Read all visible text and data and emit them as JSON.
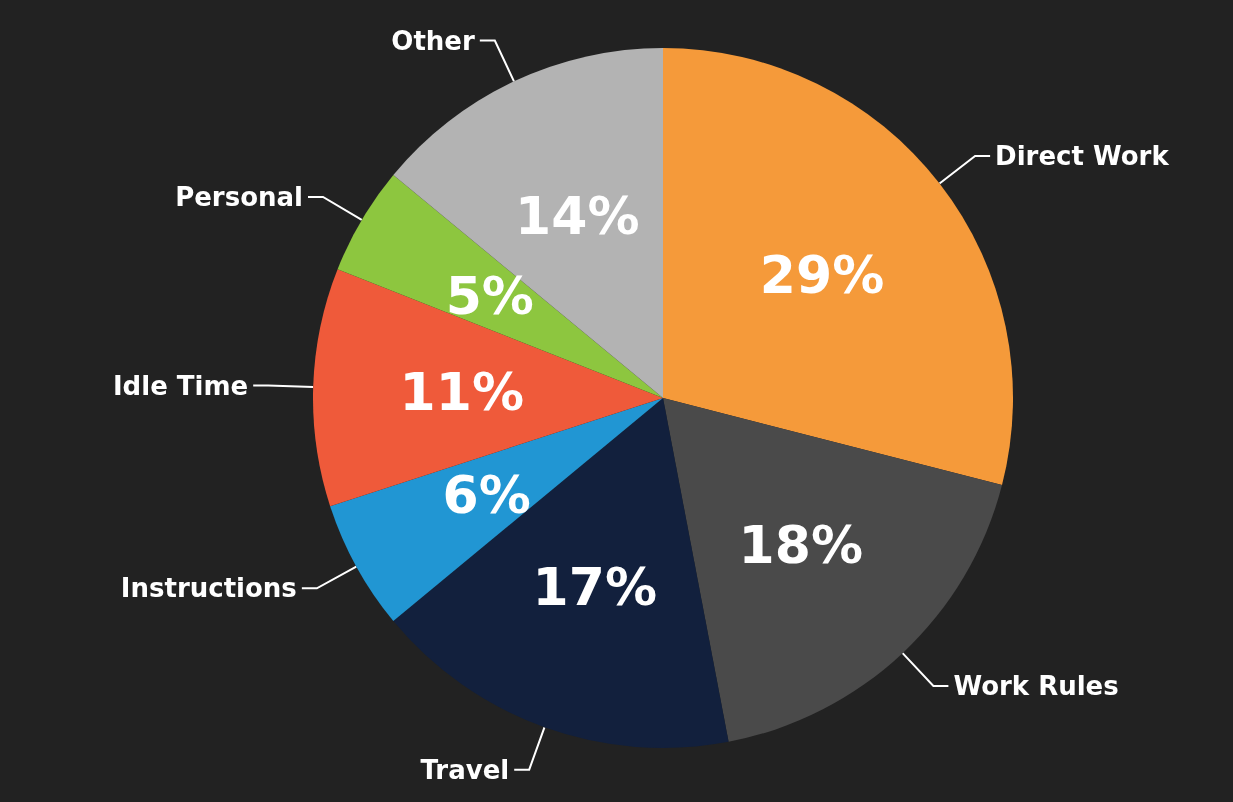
{
  "chart_data": {
    "type": "pie",
    "categories": [
      "Direct Work",
      "Work Rules",
      "Travel",
      "Instructions",
      "Idle Time",
      "Personal",
      "Other"
    ],
    "values": [
      29,
      18,
      17,
      6,
      11,
      5,
      14
    ],
    "colors": [
      "#f59a3a",
      "#4a4a4a",
      "#12203d",
      "#2196d3",
      "#ef5a3a",
      "#8dc63f",
      "#b3b3b3"
    ],
    "value_labels": [
      "29%",
      "18%",
      "17%",
      "6%",
      "11%",
      "5%",
      "14%"
    ],
    "legend": false
  }
}
